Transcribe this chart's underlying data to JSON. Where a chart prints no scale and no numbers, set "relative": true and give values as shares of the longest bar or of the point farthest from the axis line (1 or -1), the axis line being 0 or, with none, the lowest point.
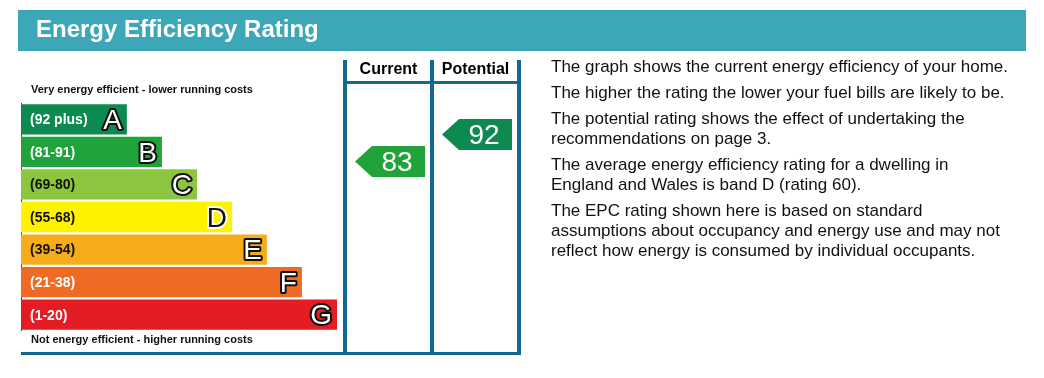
{
  "chart_data": {
    "type": "bar",
    "orientation": "horizontal",
    "relative": true,
    "title": "Energy Efficiency Rating",
    "categories": [
      "(92 plus) A",
      "(81-91) B",
      "(69-80) C",
      "(55-68) D",
      "(39-54) E",
      "(21-38) F",
      "(1-20) G"
    ],
    "values": [
      0.335,
      0.446,
      0.557,
      0.668,
      0.778,
      0.889,
      1
    ],
    "colors": [
      "#0c8a4f",
      "#1fa33a",
      "#8cc63f",
      "#fff200",
      "#f7ac1c",
      "#ef6b23",
      "#e31d23"
    ],
    "annotations": [
      "Very energy efficient - lower running costs",
      "Not energy efficient - higher running costs",
      "Current",
      "Potential",
      "83",
      "92",
      "The graph shows the current energy efficiency of your home.",
      "The higher the rating the lower your fuel bills are likely to be.",
      "The potential rating shows the effect of undertaking the recommendations on page 3.",
      "The average energy efficiency rating for a dwelling in England and Wales is band D (rating 60).",
      "The EPC rating shown here is based on standard assumptions about occupancy and energy use and may not reflect how energy is consumed by individual occupants."
    ]
  }
}
